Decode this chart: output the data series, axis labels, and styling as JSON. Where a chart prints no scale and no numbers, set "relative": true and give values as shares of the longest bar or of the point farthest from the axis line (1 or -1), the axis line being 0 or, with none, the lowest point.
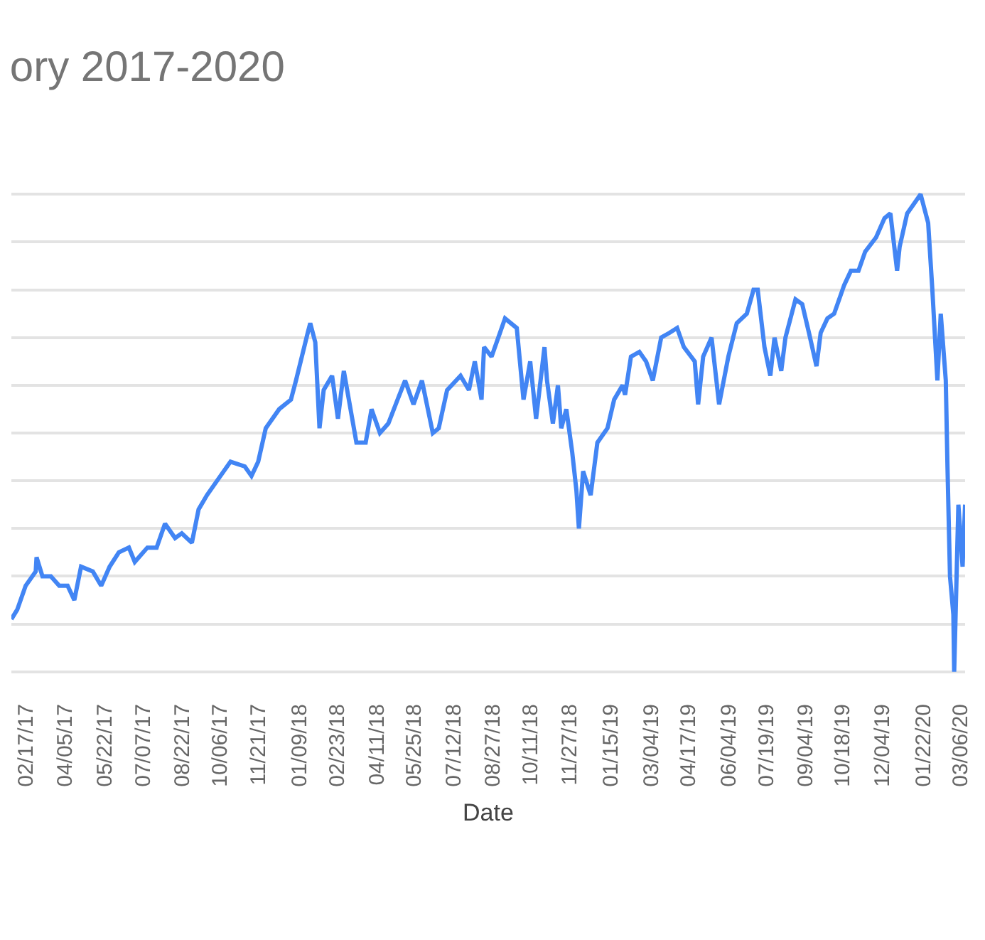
{
  "chart_data": {
    "type": "line",
    "title": "ory 2017-2020",
    "xlabel": "Date",
    "relative": true,
    "grid": "y",
    "marker": "none",
    "line_style": "solid",
    "xlim": [
      "2017-01-31",
      "2020-03-12"
    ],
    "xticks": [
      {
        "value": "2017-02-17",
        "label": "02/17/17"
      },
      {
        "value": "2017-04-05",
        "label": "04/05/17"
      },
      {
        "value": "2017-05-22",
        "label": "05/22/17"
      },
      {
        "value": "2017-07-07",
        "label": "07/07/17"
      },
      {
        "value": "2017-08-22",
        "label": "08/22/17"
      },
      {
        "value": "2017-10-06",
        "label": "10/06/17"
      },
      {
        "value": "2017-11-21",
        "label": "11/21/17"
      },
      {
        "value": "2018-01-09",
        "label": "01/09/18"
      },
      {
        "value": "2018-02-23",
        "label": "02/23/18"
      },
      {
        "value": "2018-04-11",
        "label": "04/11/18"
      },
      {
        "value": "2018-05-25",
        "label": "05/25/18"
      },
      {
        "value": "2018-07-12",
        "label": "07/12/18"
      },
      {
        "value": "2018-08-27",
        "label": "08/27/18"
      },
      {
        "value": "2018-10-11",
        "label": "10/11/18"
      },
      {
        "value": "2018-11-27",
        "label": "11/27/18"
      },
      {
        "value": "2019-01-15",
        "label": "01/15/19"
      },
      {
        "value": "2019-03-04",
        "label": "03/04/19"
      },
      {
        "value": "2019-04-17",
        "label": "04/17/19"
      },
      {
        "value": "2019-06-04",
        "label": "06/04/19"
      },
      {
        "value": "2019-07-19",
        "label": "07/19/19"
      },
      {
        "value": "2019-09-04",
        "label": "09/04/19"
      },
      {
        "value": "2019-10-18",
        "label": "10/18/19"
      },
      {
        "value": "2019-12-04",
        "label": "12/04/19"
      },
      {
        "value": "2020-01-22",
        "label": "01/22/20"
      },
      {
        "value": "2020-03-06",
        "label": "03/06/20"
      }
    ],
    "series": [
      {
        "color": "#4285f4",
        "x": [
          "2017-01-31",
          "2017-02-07",
          "2017-02-17",
          "2017-03-01",
          "2017-03-02",
          "2017-03-09",
          "2017-03-19",
          "2017-03-29",
          "2017-04-08",
          "2017-04-16",
          "2017-04-24",
          "2017-05-08",
          "2017-05-18",
          "2017-05-28",
          "2017-06-08",
          "2017-06-20",
          "2017-06-27",
          "2017-07-12",
          "2017-07-23",
          "2017-08-02",
          "2017-08-14",
          "2017-08-22",
          "2017-09-03",
          "2017-09-11",
          "2017-09-21",
          "2017-10-03",
          "2017-10-19",
          "2017-11-05",
          "2017-11-13",
          "2017-11-21",
          "2017-11-30",
          "2017-12-16",
          "2017-12-30",
          "2018-01-05",
          "2018-01-19",
          "2018-01-22",
          "2018-01-28",
          "2018-02-02",
          "2018-02-07",
          "2018-02-17",
          "2018-02-24",
          "2018-03-03",
          "2018-03-18",
          "2018-03-29",
          "2018-04-05",
          "2018-04-15",
          "2018-04-25",
          "2018-05-06",
          "2018-05-15",
          "2018-05-25",
          "2018-06-04",
          "2018-06-17",
          "2018-06-24",
          "2018-07-04",
          "2018-07-20",
          "2018-07-30",
          "2018-08-06",
          "2018-08-14",
          "2018-08-17",
          "2018-08-26",
          "2018-09-05",
          "2018-09-11",
          "2018-09-25",
          "2018-10-03",
          "2018-10-11",
          "2018-10-18",
          "2018-10-28",
          "2018-10-31",
          "2018-11-07",
          "2018-11-13",
          "2018-11-17",
          "2018-11-23",
          "2018-11-30",
          "2018-12-05",
          "2018-12-08",
          "2018-12-13",
          "2018-12-22",
          "2018-12-30",
          "2019-01-11",
          "2019-01-19",
          "2019-01-29",
          "2019-02-01",
          "2019-02-08",
          "2019-02-18",
          "2019-02-26",
          "2019-03-06",
          "2019-03-16",
          "2019-03-26",
          "2019-04-04",
          "2019-04-12",
          "2019-04-25",
          "2019-04-29",
          "2019-05-05",
          "2019-05-15",
          "2019-05-24",
          "2019-06-04",
          "2019-06-14",
          "2019-06-26",
          "2019-07-04",
          "2019-07-09",
          "2019-07-17",
          "2019-07-24",
          "2019-07-29",
          "2019-08-06",
          "2019-08-11",
          "2019-08-23",
          "2019-08-31",
          "2019-09-08",
          "2019-09-17",
          "2019-09-22",
          "2019-09-30",
          "2019-10-08",
          "2019-10-20",
          "2019-10-28",
          "2019-11-06",
          "2019-11-14",
          "2019-11-27",
          "2019-12-07",
          "2019-12-14",
          "2019-12-22",
          "2019-12-25",
          "2020-01-03",
          "2020-01-11",
          "2020-01-19",
          "2020-01-28",
          "2020-02-02",
          "2020-02-08",
          "2020-02-12",
          "2020-02-18",
          "2020-02-20",
          "2020-02-23",
          "2020-02-27",
          "2020-02-28",
          "2020-03-04",
          "2020-03-09",
          "2020-03-12"
        ],
        "values": [
          0.11,
          0.13,
          0.18,
          0.21,
          0.24,
          0.2,
          0.2,
          0.18,
          0.18,
          0.15,
          0.22,
          0.21,
          0.18,
          0.22,
          0.25,
          0.26,
          0.23,
          0.26,
          0.26,
          0.31,
          0.28,
          0.29,
          0.27,
          0.34,
          0.37,
          0.4,
          0.44,
          0.43,
          0.41,
          0.44,
          0.51,
          0.55,
          0.57,
          0.61,
          0.71,
          0.73,
          0.69,
          0.51,
          0.59,
          0.62,
          0.53,
          0.63,
          0.48,
          0.48,
          0.55,
          0.5,
          0.52,
          0.57,
          0.61,
          0.56,
          0.61,
          0.5,
          0.51,
          0.59,
          0.62,
          0.59,
          0.65,
          0.57,
          0.68,
          0.66,
          0.71,
          0.74,
          0.72,
          0.57,
          0.65,
          0.53,
          0.68,
          0.61,
          0.52,
          0.6,
          0.51,
          0.55,
          0.46,
          0.38,
          0.3,
          0.42,
          0.37,
          0.48,
          0.51,
          0.57,
          0.6,
          0.58,
          0.66,
          0.67,
          0.65,
          0.61,
          0.7,
          0.71,
          0.72,
          0.68,
          0.65,
          0.56,
          0.66,
          0.7,
          0.56,
          0.66,
          0.73,
          0.75,
          0.8,
          0.8,
          0.68,
          0.62,
          0.7,
          0.63,
          0.7,
          0.78,
          0.77,
          0.71,
          0.64,
          0.71,
          0.74,
          0.75,
          0.81,
          0.84,
          0.84,
          0.88,
          0.91,
          0.95,
          0.96,
          0.84,
          0.89,
          0.96,
          0.98,
          1,
          0.94,
          0.8,
          0.61,
          0.75,
          0.61,
          0.43,
          0.2,
          0.12,
          0,
          0.35,
          0.22,
          0.35
        ]
      }
    ]
  }
}
